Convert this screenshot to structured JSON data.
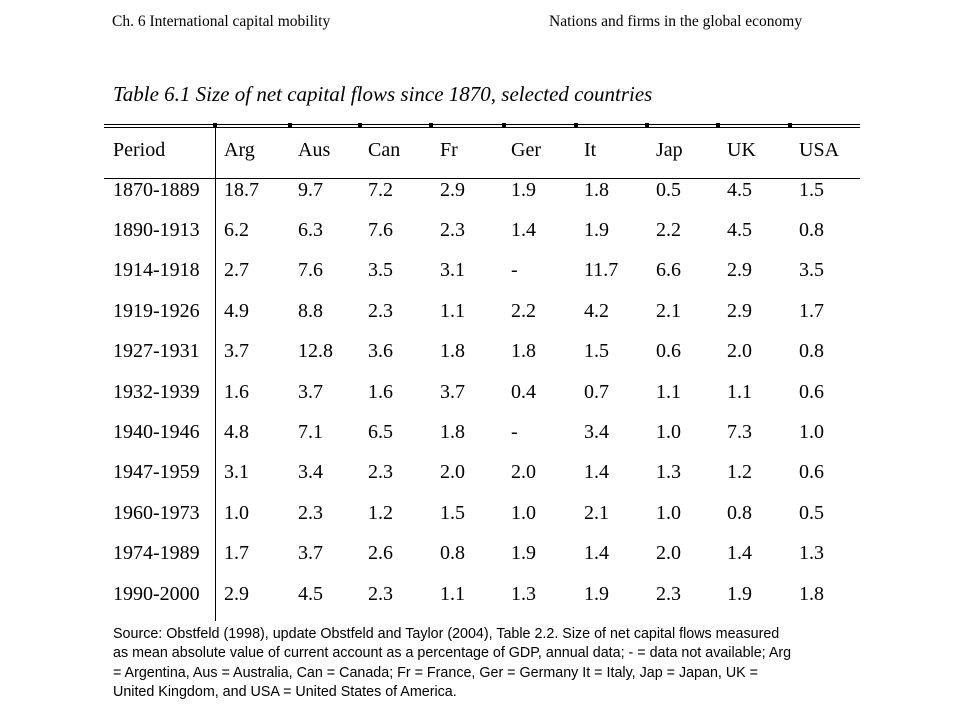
{
  "header": {
    "left": "Ch. 6 International capital mobility",
    "right": "Nations and firms in the global economy"
  },
  "table": {
    "title": "Table 6.1  Size of net capital flows since 1870, selected countries",
    "columns": [
      "Period",
      "Arg",
      "Aus",
      "Can",
      "Fr",
      "Ger",
      "It",
      "Jap",
      "UK",
      "USA"
    ],
    "rows": [
      [
        "1870-1889",
        "18.7",
        "9.7",
        "7.2",
        "2.9",
        "1.9",
        "1.8",
        "0.5",
        "4.5",
        "1.5"
      ],
      [
        "1890-1913",
        "6.2",
        "6.3",
        "7.6",
        "2.3",
        "1.4",
        "1.9",
        "2.2",
        "4.5",
        "0.8"
      ],
      [
        "1914-1918",
        "2.7",
        "7.6",
        "3.5",
        "3.1",
        "-",
        "11.7",
        "6.6",
        "2.9",
        "3.5"
      ],
      [
        "1919-1926",
        "4.9",
        "8.8",
        "2.3",
        "1.1",
        "2.2",
        "4.2",
        "2.1",
        "2.9",
        "1.7"
      ],
      [
        "1927-1931",
        "3.7",
        "12.8",
        "3.6",
        "1.8",
        "1.8",
        "1.5",
        "0.6",
        "2.0",
        "0.8"
      ],
      [
        "1932-1939",
        "1.6",
        "3.7",
        "1.6",
        "3.7",
        "0.4",
        "0.7",
        "1.1",
        "1.1",
        "0.6"
      ],
      [
        "1940-1946",
        "4.8",
        "7.1",
        "6.5",
        "1.8",
        "-",
        "3.4",
        "1.0",
        "7.3",
        "1.0"
      ],
      [
        "1947-1959",
        "3.1",
        "3.4",
        "2.3",
        "2.0",
        "2.0",
        "1.4",
        "1.3",
        "1.2",
        "0.6"
      ],
      [
        "1960-1973",
        "1.0",
        "2.3",
        "1.2",
        "1.5",
        "1.0",
        "2.1",
        "1.0",
        "0.8",
        "0.5"
      ],
      [
        "1974-1989",
        "1.7",
        "3.7",
        "2.6",
        "0.8",
        "1.9",
        "1.4",
        "2.0",
        "1.4",
        "1.3"
      ],
      [
        "1990-2000",
        "2.9",
        "4.5",
        "2.3",
        "1.1",
        "1.3",
        "1.9",
        "2.3",
        "1.9",
        "1.8"
      ]
    ]
  },
  "source": {
    "lines": [
      "Source: Obstfeld (1998), update Obstfeld and Taylor (2004), Table 2.2. Size of net capital flows measured",
      "as mean absolute value of current account as a percentage of GDP, annual data; - = data not available; Arg",
      "= Argentina, Aus = Australia, Can = Canada; Fr = France, Ger = Germany It = Italy, Jap = Japan, UK =",
      "United Kingdom, and USA = United States of America."
    ]
  }
}
